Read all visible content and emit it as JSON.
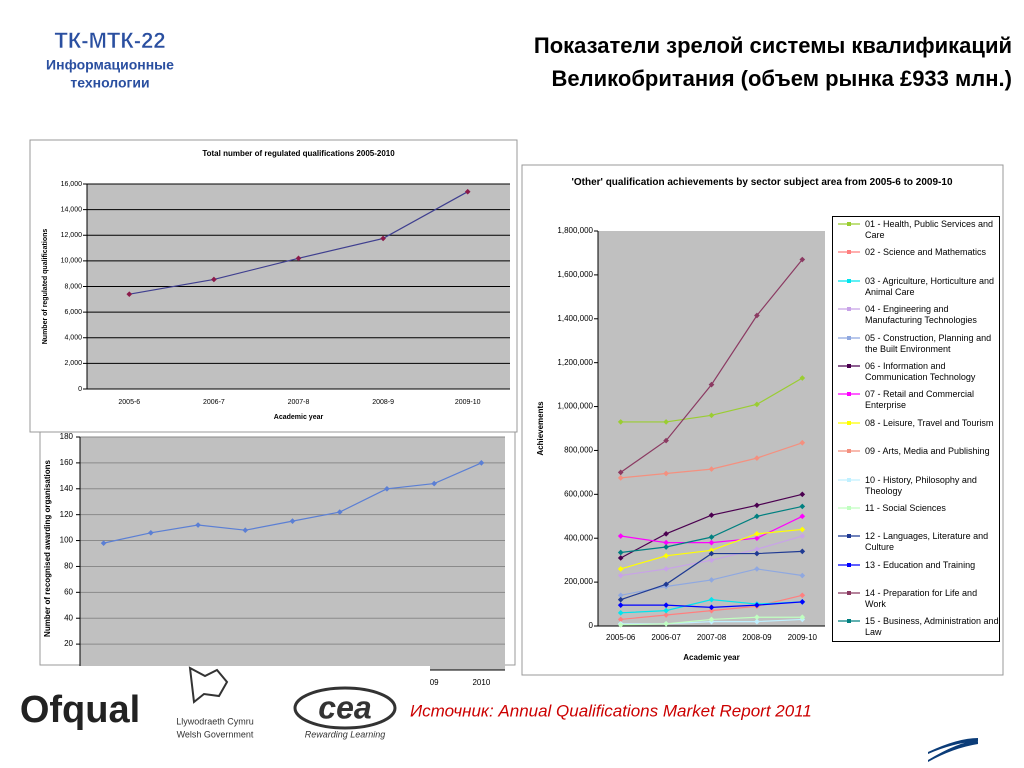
{
  "header": {
    "logo_title": "ТК-МТК-22",
    "logo_line1": "Информационные",
    "logo_line2": "технологии",
    "title_line1": "Показатели зрелой системы квалификаций",
    "title_line2": "Великобритания  (объем рынка £933 млн.)"
  },
  "chart_data": [
    {
      "type": "line",
      "title": "Total number of regulated qualifications 2005-2010",
      "x_label": "Academic year",
      "y_label": "Number of regulated qualifications",
      "categories": [
        "2005-6",
        "2006-7",
        "2007-8",
        "2008-9",
        "2009-10"
      ],
      "series": [
        {
          "name": null,
          "color": "#3f3f8f",
          "marker_color": "#8b1a4a",
          "values": [
            7400,
            8550,
            10200,
            11750,
            15400
          ]
        }
      ],
      "ylim": [
        0,
        16000
      ],
      "yticks": [
        0,
        {
          "value": 2000,
          "label": "2,000"
        },
        {
          "value": 4000,
          "label": "4,000"
        },
        {
          "value": 6000,
          "label": "6,000"
        },
        {
          "value": 8000,
          "label": "8,000"
        },
        {
          "value": 10000,
          "label": "10,000"
        },
        {
          "value": 12000,
          "label": "12,000"
        },
        {
          "value": 14000,
          "label": "14,000"
        },
        {
          "value": 16000,
          "label": "16,000"
        }
      ],
      "grid": true,
      "grid_color": "#000000",
      "plot_background": "#c0c0c0"
    },
    {
      "type": "line",
      "y_label": "Number of recognised awarding organisations",
      "categories": [
        null,
        null,
        null,
        null,
        null,
        null,
        null,
        "09",
        "2010"
      ],
      "series": [
        {
          "name": null,
          "color": "#5b7fd4",
          "marker_color": "#5b7fd4",
          "values": [
            98,
            106,
            112,
            108,
            115,
            122,
            140,
            144,
            160
          ]
        }
      ],
      "ylim": [
        0,
        180
      ],
      "yticks": [
        20,
        40,
        60,
        80,
        100,
        120,
        140,
        160,
        180
      ],
      "grid": true,
      "grid_color": "#8a8a8a",
      "plot_background": "#c0c0c0"
    },
    {
      "type": "line",
      "title": "'Other' qualification achievements by sector subject area from 2005-6 to 2009-10",
      "x_label": "Academic year",
      "y_label": "Achievements",
      "categories": [
        "2005-06",
        "2006-07",
        "2007-08",
        "2008-09",
        "2009-10"
      ],
      "ylim": [
        0,
        1800000
      ],
      "yticks": [
        0,
        {
          "value": 200000,
          "label": "200,000"
        },
        {
          "value": 400000,
          "label": "400,000"
        },
        {
          "value": 600000,
          "label": "600,000"
        },
        {
          "value": 800000,
          "label": "800,000"
        },
        {
          "value": 1000000,
          "label": "1,000,000"
        },
        {
          "value": 1200000,
          "label": "1,200,000"
        },
        {
          "value": 1400000,
          "label": "1,400,000"
        },
        {
          "value": 1600000,
          "label": "1,600,000"
        },
        {
          "value": 1800000,
          "label": "1,800,000"
        }
      ],
      "grid": false,
      "plot_background": "#c0c0c0",
      "series": [
        {
          "name": "01 - Health, Public Services and Care",
          "color": "#9acd32",
          "values": [
            930000,
            930000,
            960000,
            1010000,
            1130000
          ]
        },
        {
          "name": "02 - Science and Mathematics",
          "color": "#ff7f7f",
          "values": [
            30000,
            50000,
            70000,
            90000,
            140000
          ]
        },
        {
          "name": "03 - Agriculture, Horticulture and Animal Care",
          "color": "#00e5ee",
          "values": [
            60000,
            70000,
            120000,
            100000,
            110000
          ]
        },
        {
          "name": "04 - Engineering and Manufacturing Technologies",
          "color": "#c8a2e8",
          "values": [
            230000,
            260000,
            300000,
            350000,
            410000
          ]
        },
        {
          "name": "05 - Construction, Planning and the Built Environment",
          "color": "#8fa8e0",
          "values": [
            140000,
            180000,
            210000,
            260000,
            230000
          ]
        },
        {
          "name": "06 - Information and Communication Technology",
          "color": "#4b0050",
          "values": [
            310000,
            420000,
            505000,
            550000,
            600000
          ]
        },
        {
          "name": "07 - Retail and Commercial Enterprise",
          "color": "#ff00ff",
          "values": [
            410000,
            380000,
            380000,
            400000,
            500000
          ]
        },
        {
          "name": "08 - Leisure, Travel and Tourism",
          "color": "#ffff00",
          "values": [
            260000,
            320000,
            345000,
            420000,
            440000
          ]
        },
        {
          "name": "09 - Arts, Media and Publishing",
          "color": "#f4907f",
          "values": [
            675000,
            695000,
            715000,
            765000,
            835000
          ]
        },
        {
          "name": "10 - History, Philosophy and Theology",
          "color": "#c0f0ff",
          "values": [
            10000,
            10000,
            20000,
            20000,
            30000
          ]
        },
        {
          "name": "11 - Social Sciences",
          "color": "#c0ffc0",
          "values": [
            5000,
            10000,
            30000,
            40000,
            40000
          ]
        },
        {
          "name": "12 - Languages, Literature and Culture",
          "color": "#1f3a93",
          "values": [
            120000,
            190000,
            330000,
            330000,
            340000
          ]
        },
        {
          "name": "13 - Education and Training",
          "color": "#0000ff",
          "values": [
            95000,
            95000,
            85000,
            95000,
            110000
          ]
        },
        {
          "name": "14 - Preparation for Life and Work",
          "color": "#8b3a62",
          "values": [
            700000,
            845000,
            1100000,
            1415000,
            1670000
          ]
        },
        {
          "name": "15 - Business, Administration and Law",
          "color": "#008080",
          "values": [
            335000,
            360000,
            405000,
            500000,
            545000
          ]
        }
      ]
    }
  ],
  "footer": {
    "ofqual": "Ofqual",
    "welsh_line1": "Llywodraeth Cymru",
    "welsh_line2": "Welsh Government",
    "cea": "cea",
    "cea_tagline": "Rewarding Learning",
    "source": "Источник: Annual Qualifications Market Report 2011"
  }
}
